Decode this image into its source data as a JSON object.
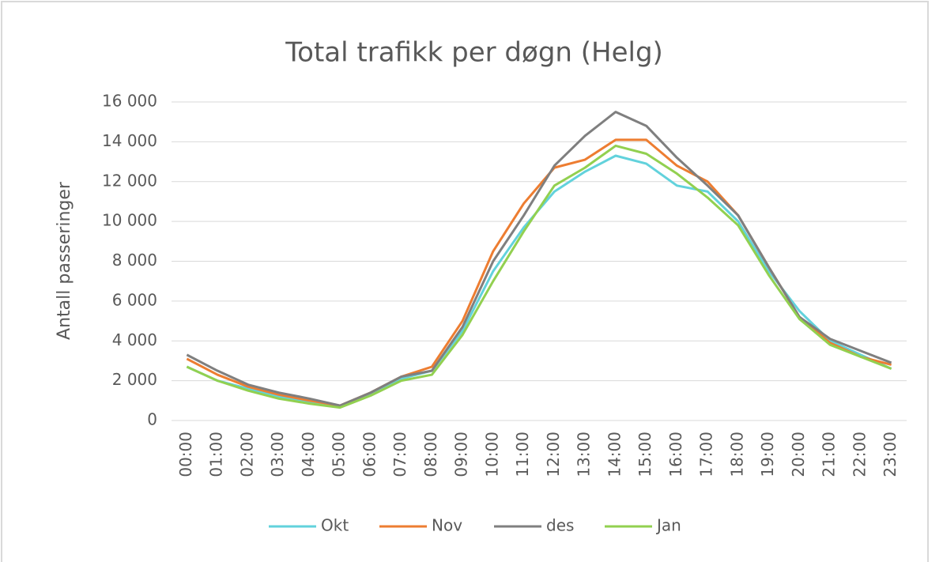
{
  "chart_data": {
    "type": "line",
    "title": "Total trafikk per døgn (Helg)",
    "y_label": "Antall passeringer",
    "categories": [
      "00:00",
      "01:00",
      "02:00",
      "03:00",
      "04:00",
      "05:00",
      "06:00",
      "07:00",
      "08:00",
      "09:00",
      "10:00",
      "11:00",
      "12:00",
      "13:00",
      "14:00",
      "15:00",
      "16:00",
      "17:00",
      "18:00",
      "19:00",
      "20:00",
      "21:00",
      "22:00",
      "23:00"
    ],
    "series": [
      {
        "name": "Okt",
        "color": "#62d2dc",
        "values": [
          2700,
          2000,
          1600,
          1200,
          950,
          700,
          1300,
          2100,
          2500,
          4500,
          7500,
          9700,
          11500,
          12500,
          13300,
          12900,
          11800,
          11500,
          10000,
          7500,
          5500,
          4000,
          3300,
          2600
        ]
      },
      {
        "name": "Nov",
        "color": "#ed7d31",
        "values": [
          3100,
          2300,
          1700,
          1300,
          1000,
          750,
          1400,
          2200,
          2700,
          5000,
          8500,
          10900,
          12700,
          13100,
          14100,
          14100,
          12800,
          12000,
          10300,
          7700,
          5200,
          3900,
          3200,
          2800
        ]
      },
      {
        "name": "des",
        "color": "#7f7f7f",
        "values": [
          3300,
          2500,
          1800,
          1400,
          1100,
          750,
          1400,
          2200,
          2500,
          4700,
          8000,
          10300,
          12800,
          14300,
          15500,
          14800,
          13200,
          11800,
          10300,
          7700,
          5200,
          4100,
          3500,
          2900
        ]
      },
      {
        "name": "Jan",
        "color": "#92d050",
        "values": [
          2700,
          2000,
          1500,
          1100,
          850,
          650,
          1250,
          2000,
          2300,
          4300,
          7000,
          9500,
          11800,
          12700,
          13800,
          13400,
          12400,
          11200,
          9800,
          7300,
          5100,
          3800,
          3200,
          2600
        ]
      }
    ],
    "ylim": [
      0,
      16000
    ],
    "yticks": [
      0,
      {
        "value": 2000,
        "label": "2 000"
      },
      {
        "value": 4000,
        "label": "4 000"
      },
      {
        "value": 6000,
        "label": "6 000"
      },
      {
        "value": 8000,
        "label": "8 000"
      },
      {
        "value": 10000,
        "label": "10 000"
      },
      {
        "value": 12000,
        "label": "12 000"
      },
      {
        "value": 14000,
        "label": "14 000"
      },
      {
        "value": 16000,
        "label": "16 000"
      }
    ],
    "grid": true,
    "legend": "bottom"
  }
}
